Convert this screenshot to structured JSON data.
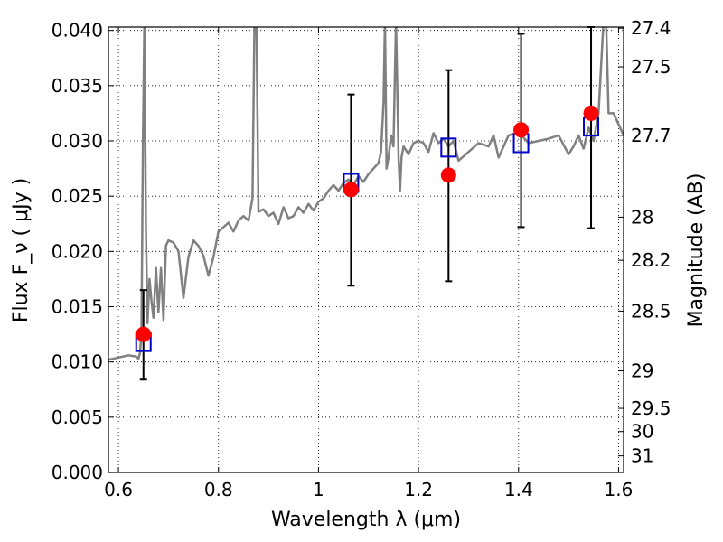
{
  "chart_data": {
    "type": "line",
    "xlabel": "Wavelength  λ (μm)",
    "ylabel": "Flux  F_ν  ( μJy )",
    "y2label": "Magnitude (AB)",
    "xlim": [
      0.58,
      1.61
    ],
    "ylim": [
      0.0,
      0.0403
    ],
    "grid": true,
    "xticks": [
      0.6,
      0.8,
      1.0,
      1.2,
      1.4,
      1.6
    ],
    "xtick_labels": [
      "0.6",
      "0.8",
      "1",
      "1.2",
      "1.4",
      "1.6"
    ],
    "yticks": [
      0.0,
      0.005,
      0.01,
      0.015,
      0.02,
      0.025,
      0.03,
      0.035,
      0.04
    ],
    "ytick_labels": [
      "0.000",
      "0.005",
      "0.010",
      "0.015",
      "0.020",
      "0.025",
      "0.030",
      "0.035",
      "0.040"
    ],
    "y2ticks": [
      {
        "label": "27.4",
        "flux": 0.0402
      },
      {
        "label": "27.5",
        "flux": 0.0367
      },
      {
        "label": "27.7",
        "flux": 0.0305
      },
      {
        "label": "28",
        "flux": 0.0231
      },
      {
        "label": "28.2",
        "flux": 0.0192
      },
      {
        "label": "28.5",
        "flux": 0.0146
      },
      {
        "label": "29",
        "flux": 0.0092
      },
      {
        "label": "29.5",
        "flux": 0.0058
      },
      {
        "label": "30",
        "flux": 0.0037
      },
      {
        "label": "31",
        "flux": 0.0015
      }
    ],
    "series": [
      {
        "type": "line",
        "color": "#808080",
        "x": [
          0.58,
          0.6,
          0.62,
          0.635,
          0.64,
          0.643,
          0.646,
          0.649,
          0.652,
          0.655,
          0.658,
          0.662,
          0.666,
          0.67,
          0.675,
          0.68,
          0.685,
          0.69,
          0.695,
          0.7,
          0.71,
          0.72,
          0.73,
          0.74,
          0.75,
          0.76,
          0.77,
          0.78,
          0.79,
          0.8,
          0.81,
          0.82,
          0.83,
          0.84,
          0.85,
          0.86,
          0.868,
          0.872,
          0.876,
          0.88,
          0.89,
          0.9,
          0.91,
          0.92,
          0.93,
          0.94,
          0.95,
          0.96,
          0.97,
          0.98,
          0.99,
          1.0,
          1.01,
          1.02,
          1.03,
          1.04,
          1.05,
          1.06,
          1.07,
          1.08,
          1.09,
          1.1,
          1.11,
          1.12,
          1.125,
          1.13,
          1.133,
          1.136,
          1.14,
          1.145,
          1.15,
          1.155,
          1.16,
          1.163,
          1.166,
          1.17,
          1.18,
          1.19,
          1.2,
          1.21,
          1.22,
          1.23,
          1.24,
          1.25,
          1.26,
          1.27,
          1.28,
          1.3,
          1.32,
          1.34,
          1.35,
          1.36,
          1.38,
          1.4,
          1.42,
          1.44,
          1.46,
          1.48,
          1.5,
          1.51,
          1.52,
          1.53,
          1.54,
          1.55,
          1.56,
          1.57,
          1.575,
          1.58,
          1.585,
          1.59,
          1.6,
          1.61
        ],
        "y": [
          0.0102,
          0.0104,
          0.0106,
          0.0105,
          0.0103,
          0.0108,
          0.0125,
          0.03,
          0.041,
          0.022,
          0.0135,
          0.0175,
          0.0155,
          0.014,
          0.0185,
          0.0145,
          0.0185,
          0.0138,
          0.0205,
          0.021,
          0.0208,
          0.02,
          0.0158,
          0.0195,
          0.021,
          0.0205,
          0.0196,
          0.0178,
          0.0195,
          0.0218,
          0.0222,
          0.0226,
          0.0218,
          0.0228,
          0.0232,
          0.0228,
          0.0248,
          0.041,
          0.041,
          0.0236,
          0.0238,
          0.0232,
          0.0235,
          0.0225,
          0.024,
          0.023,
          0.0232,
          0.024,
          0.0235,
          0.0243,
          0.0237,
          0.0245,
          0.0248,
          0.0255,
          0.026,
          0.0255,
          0.0262,
          0.0265,
          0.026,
          0.0268,
          0.0263,
          0.027,
          0.0275,
          0.028,
          0.029,
          0.0335,
          0.041,
          0.0275,
          0.0285,
          0.0305,
          0.0295,
          0.041,
          0.0285,
          0.0255,
          0.0285,
          0.0295,
          0.0288,
          0.0298,
          0.03,
          0.0298,
          0.029,
          0.0307,
          0.0298,
          0.0302,
          0.0295,
          0.03,
          0.0282,
          0.029,
          0.0298,
          0.0295,
          0.0305,
          0.0285,
          0.0305,
          0.0308,
          0.0298,
          0.03,
          0.0302,
          0.0305,
          0.0288,
          0.0295,
          0.0305,
          0.0293,
          0.0312,
          0.03,
          0.0325,
          0.041,
          0.041,
          0.0325,
          0.0325,
          0.0325,
          0.0315,
          0.0305
        ]
      },
      {
        "type": "markers",
        "marker": "square",
        "color": "#0000cc",
        "x": [
          0.65,
          1.065,
          1.26,
          1.405,
          1.545
        ],
        "y": [
          0.0118,
          0.0262,
          0.0294,
          0.0298,
          0.0313
        ]
      },
      {
        "type": "markers",
        "marker": "circle",
        "color": "#ff0000",
        "x": [
          0.65,
          1.065,
          1.26,
          1.405,
          1.545
        ],
        "y": [
          0.0125,
          0.0256,
          0.0269,
          0.031,
          0.0325
        ],
        "yerr_low": [
          0.0084,
          0.0169,
          0.0173,
          0.0222,
          0.0221
        ],
        "yerr_high": [
          0.0165,
          0.0342,
          0.0364,
          0.0397,
          0.0403
        ]
      }
    ]
  }
}
